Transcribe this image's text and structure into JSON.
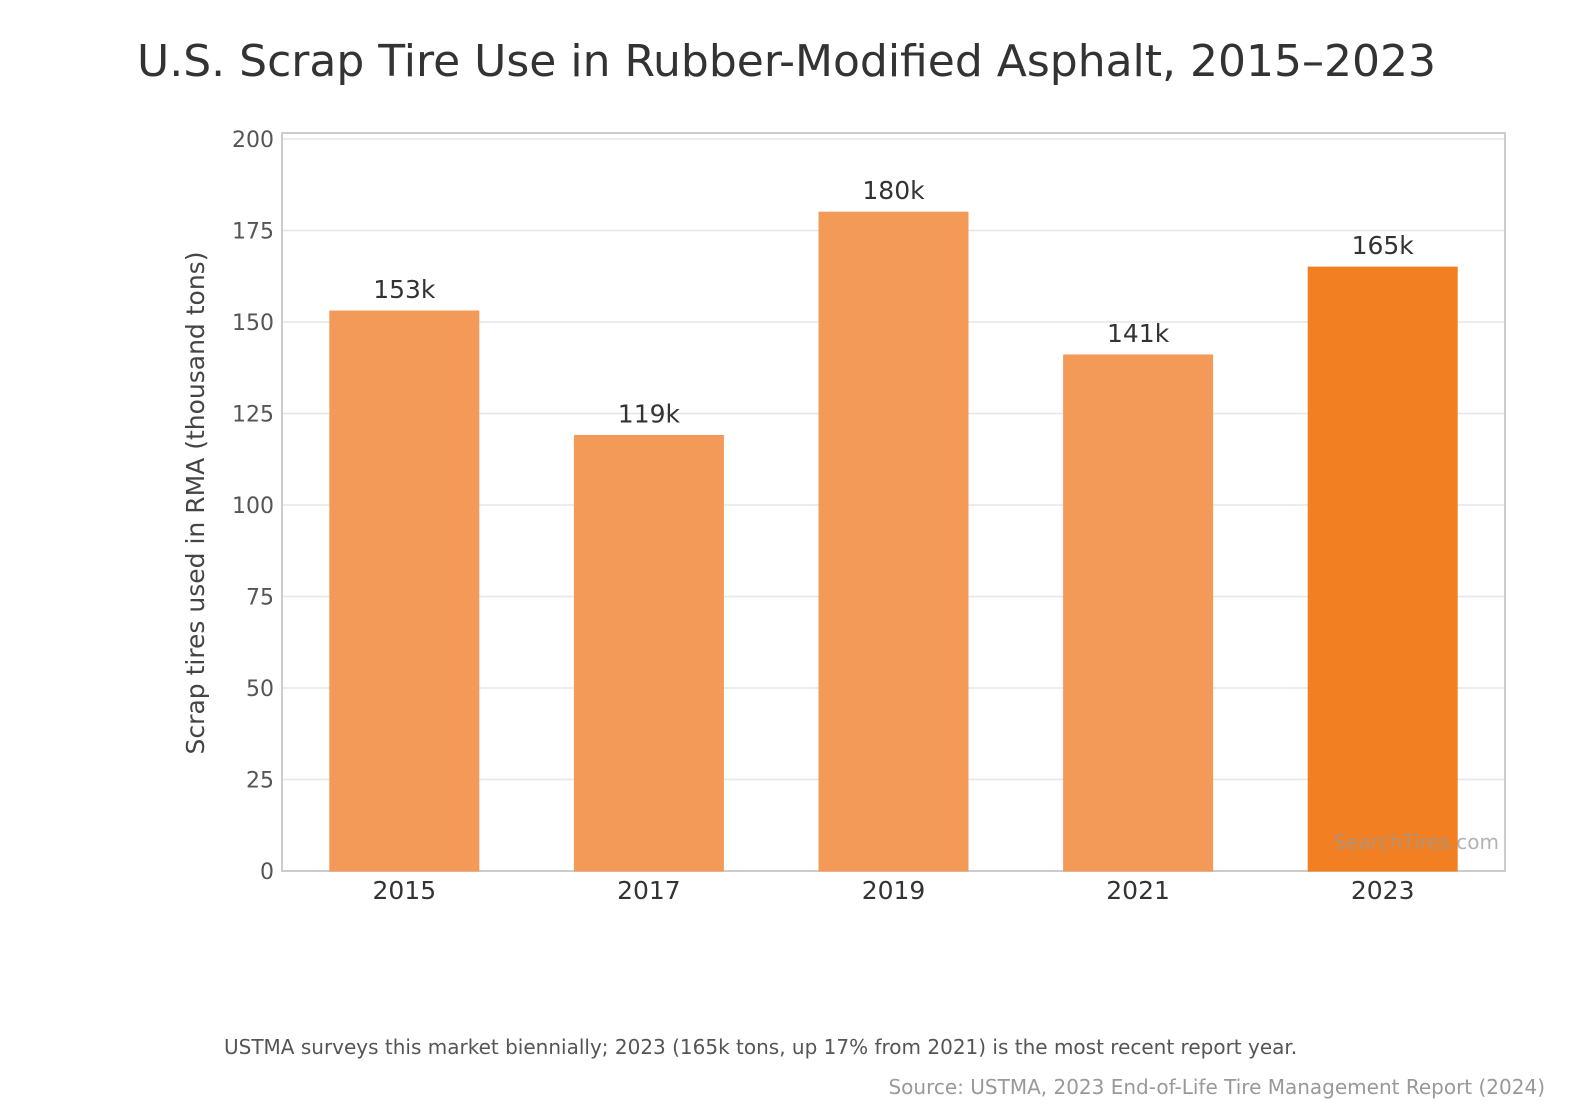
{
  "chart_data": {
    "type": "bar",
    "title": "U.S. Scrap Tire Use in Rubber-Modified Asphalt, 2015–2023",
    "xlabel": "",
    "ylabel": "Scrap tires used in RMA (thousand tons)",
    "categories": [
      "2015",
      "2017",
      "2019",
      "2021",
      "2023"
    ],
    "values": [
      153,
      119,
      180,
      141,
      165
    ],
    "data_labels": [
      "153k",
      "119k",
      "180k",
      "141k",
      "165k"
    ],
    "ylim": [
      0,
      200
    ],
    "yticks": [
      "0",
      "25",
      "50",
      "75",
      "100",
      "125",
      "150",
      "175",
      "200"
    ],
    "grid": true,
    "highlight_category": "2023",
    "colors": {
      "bar": "#f49a58",
      "highlight": "#f27f21",
      "grid": "#e6e6e6",
      "frame": "#cccccc"
    },
    "watermark": "SearchTires.com"
  },
  "footnote": "USTMA surveys this market biennially; 2023 (165k tons, up 17% from 2021) is the most recent report year.",
  "source": "Source: USTMA, 2023 End-of-Life Tire Management Report (2024)"
}
